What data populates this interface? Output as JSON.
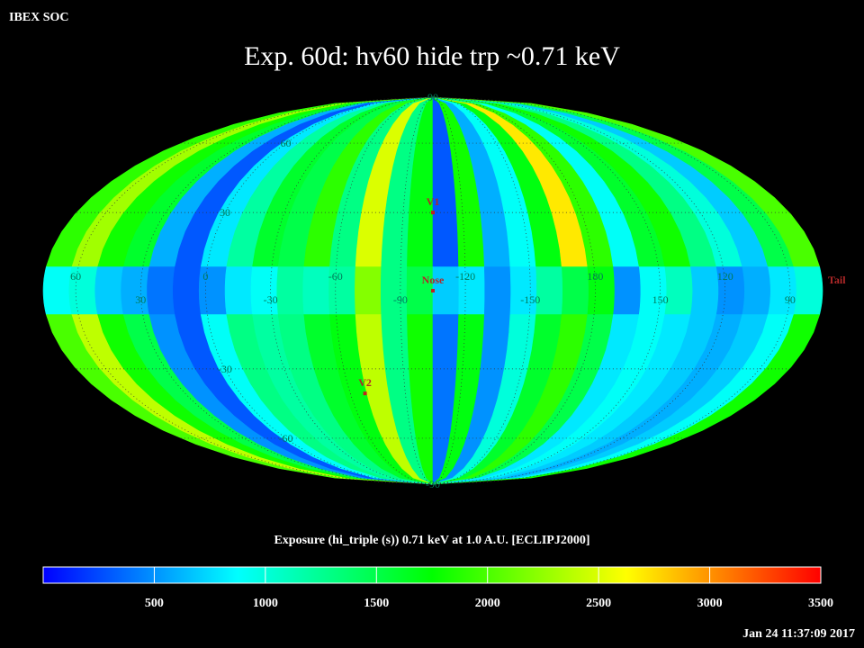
{
  "chart_data": {
    "type": "mollweide-heatmap",
    "source": "IBEX SOC",
    "title": "Exp.   60d: hv60 hide trp ~0.71 keV",
    "colorbar_label": "Exposure (hi_triple (s))  0.71 keV at 1.0 A.U. [ECLIPJ2000]",
    "timestamp": "Jan 24 11:37:09 2017",
    "xlim": [
      75,
      -285
    ],
    "xticks": [
      60,
      30,
      0,
      -30,
      -60,
      -90,
      -120,
      -150,
      180,
      150,
      120,
      90
    ],
    "yticks": [
      90,
      60,
      30,
      -30,
      -60,
      -90
    ],
    "grid": true,
    "zlim": [
      0,
      3500
    ],
    "zticks": [
      500,
      1000,
      1500,
      2000,
      2500,
      3000,
      3500
    ],
    "colors": [
      "#0000ff",
      "#0080ff",
      "#00ffff",
      "#00ff80",
      "#00ff00",
      "#80ff00",
      "#ffff00",
      "#ff8000",
      "#ff0000"
    ],
    "z": [
      [
        1900,
        2300,
        1800,
        1600,
        600,
        300,
        800,
        1200,
        1600,
        1500,
        1900,
        1300,
        2500,
        1300,
        1700,
        300,
        1800,
        600,
        900,
        1700,
        2700,
        1900,
        900,
        1600,
        1800,
        1300,
        1000,
        700,
        1500,
        2000
      ],
      [
        900,
        1000,
        700,
        600,
        400,
        300,
        500,
        800,
        900,
        1200,
        1100,
        1200,
        2200,
        1300,
        1500,
        700,
        800,
        500,
        800,
        1200,
        1500,
        1700,
        500,
        900,
        1100,
        700,
        500,
        600,
        800,
        1000
      ],
      [
        2000,
        2400,
        1800,
        1500,
        500,
        300,
        900,
        1300,
        1200,
        1300,
        1600,
        1700,
        2400,
        1300,
        1800,
        400,
        1700,
        500,
        1000,
        1600,
        1900,
        1500,
        800,
        900,
        800,
        700,
        600,
        700,
        900,
        1800
      ]
    ],
    "markers": [
      {
        "label": "V1",
        "lon": 255,
        "lat": 30
      },
      {
        "label": "Nose",
        "lon": 255,
        "lat": 0
      },
      {
        "label": "V2",
        "lon": 292,
        "lat": -40
      },
      {
        "label": "Tail",
        "lon": 75,
        "lat": 0
      }
    ]
  }
}
